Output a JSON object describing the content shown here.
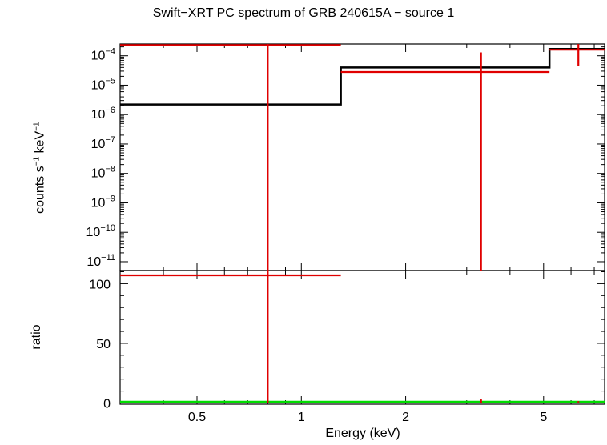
{
  "title": "Swift−XRT PC spectrum of GRB 240615A − source 1",
  "xlabel": "Energy (keV)",
  "colors": {
    "data": "#e00000",
    "model": "#000000",
    "ratio_line": "#00dd00",
    "axes": "#000000"
  },
  "chart_data": [
    {
      "type": "line",
      "panel": "spectrum",
      "ylabel": {
        "main": "counts s",
        "exp1": "−1",
        "mid": " keV",
        "exp2": "−1"
      },
      "xscale": "log",
      "yscale": "log",
      "xlim": [
        0.3,
        7.5
      ],
      "ylim_log10": [
        -11.3,
        -3.6
      ],
      "ytick_labels": [
        "10−11",
        "10−10",
        "10−9",
        "10−8",
        "10−7",
        "10−6",
        "10−5",
        "10−4"
      ],
      "ytick_exponents": [
        -11,
        -10,
        -9,
        -8,
        -7,
        -6,
        -5,
        -4
      ],
      "series": [
        {
          "role": "model",
          "steps": [
            {
              "x0": 0.3,
              "x1": 1.3,
              "y": 2.2e-06
            },
            {
              "x0": 1.3,
              "x1": 5.2,
              "y": 4e-05
            },
            {
              "x0": 5.2,
              "x1": 7.5,
              "y": 0.00017
            }
          ]
        },
        {
          "role": "data",
          "points": [
            {
              "x": 0.8,
              "xlo": 0.3,
              "xhi": 1.3,
              "y": 0.00023,
              "ylo": 5e-12,
              "yhi": 0.0003
            },
            {
              "x": 3.3,
              "xlo": 1.3,
              "xhi": 5.2,
              "y": 2.8e-05,
              "ylo": 5e-12,
              "yhi": 0.00013
            },
            {
              "x": 6.3,
              "xlo": 5.2,
              "xhi": 7.5,
              "y": 0.00016,
              "ylo": 4.5e-05,
              "yhi": 0.00025
            }
          ]
        }
      ]
    },
    {
      "type": "line",
      "panel": "ratio",
      "ylabel": "ratio",
      "xscale": "log",
      "xlim": [
        0.3,
        7.5
      ],
      "ylim": [
        -1,
        111
      ],
      "yticks": [
        0,
        50,
        100
      ],
      "xtick_labels": [
        "0.5",
        "1",
        "2",
        "5"
      ],
      "xticks": [
        0.5,
        1,
        2,
        5
      ],
      "reference_line": 1,
      "series": [
        {
          "role": "data",
          "points": [
            {
              "x": 0.8,
              "xlo": 0.3,
              "xhi": 1.3,
              "y": 107,
              "ylo": 0,
              "yhi": 120
            },
            {
              "x": 3.3,
              "xlo": 3.28,
              "xhi": 3.32,
              "y": 0.6,
              "ylo": 0,
              "yhi": 3
            },
            {
              "x": 6.3,
              "xlo": 6.28,
              "xhi": 6.32,
              "y": 0.9,
              "ylo": 0.5,
              "yhi": 1.4
            }
          ]
        }
      ]
    }
  ]
}
